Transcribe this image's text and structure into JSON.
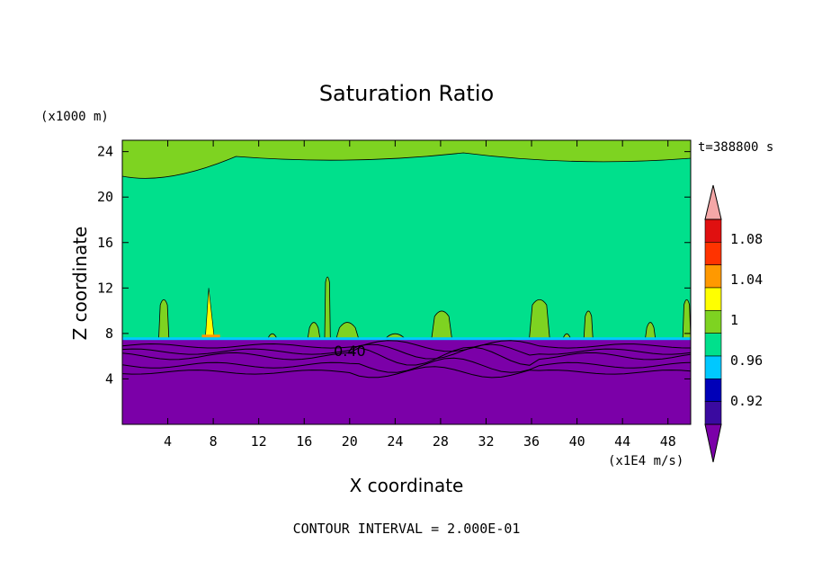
{
  "chart_data": {
    "type": "heatmap",
    "title": "Saturation Ratio",
    "xlabel": "X coordinate",
    "ylabel": "Z coordinate",
    "x_unit": "(x1E4 m/s)",
    "y_unit": "(x1000 m)",
    "time_label": "t=388800 s",
    "footer": "CONTOUR INTERVAL = 2.000E-01",
    "contour_label": "0.40",
    "xlim": [
      0,
      50
    ],
    "ylim": [
      0,
      25
    ],
    "x_ticks": [
      "4",
      "8",
      "12",
      "16",
      "20",
      "24",
      "28",
      "32",
      "36",
      "40",
      "44",
      "48"
    ],
    "y_ticks": [
      "4",
      "8",
      "12",
      "16",
      "20",
      "24"
    ],
    "colorbar": {
      "labels": [
        "0.92",
        "0.96",
        "1",
        "1.04",
        "1.08"
      ],
      "colors": [
        "#7b00a8",
        "#3a0aa0",
        "#0000b8",
        "#00c8ff",
        "#00e08c",
        "#7ed321",
        "#ffff00",
        "#ff9900",
        "#ff3300",
        "#e01010",
        "#f4a7a7"
      ]
    },
    "regions": {
      "low_layer_top_z": 7.5,
      "low_value_color": "#7b00a8",
      "upper_base_color": "#00e08c",
      "plume_color": "#7ed321"
    }
  }
}
